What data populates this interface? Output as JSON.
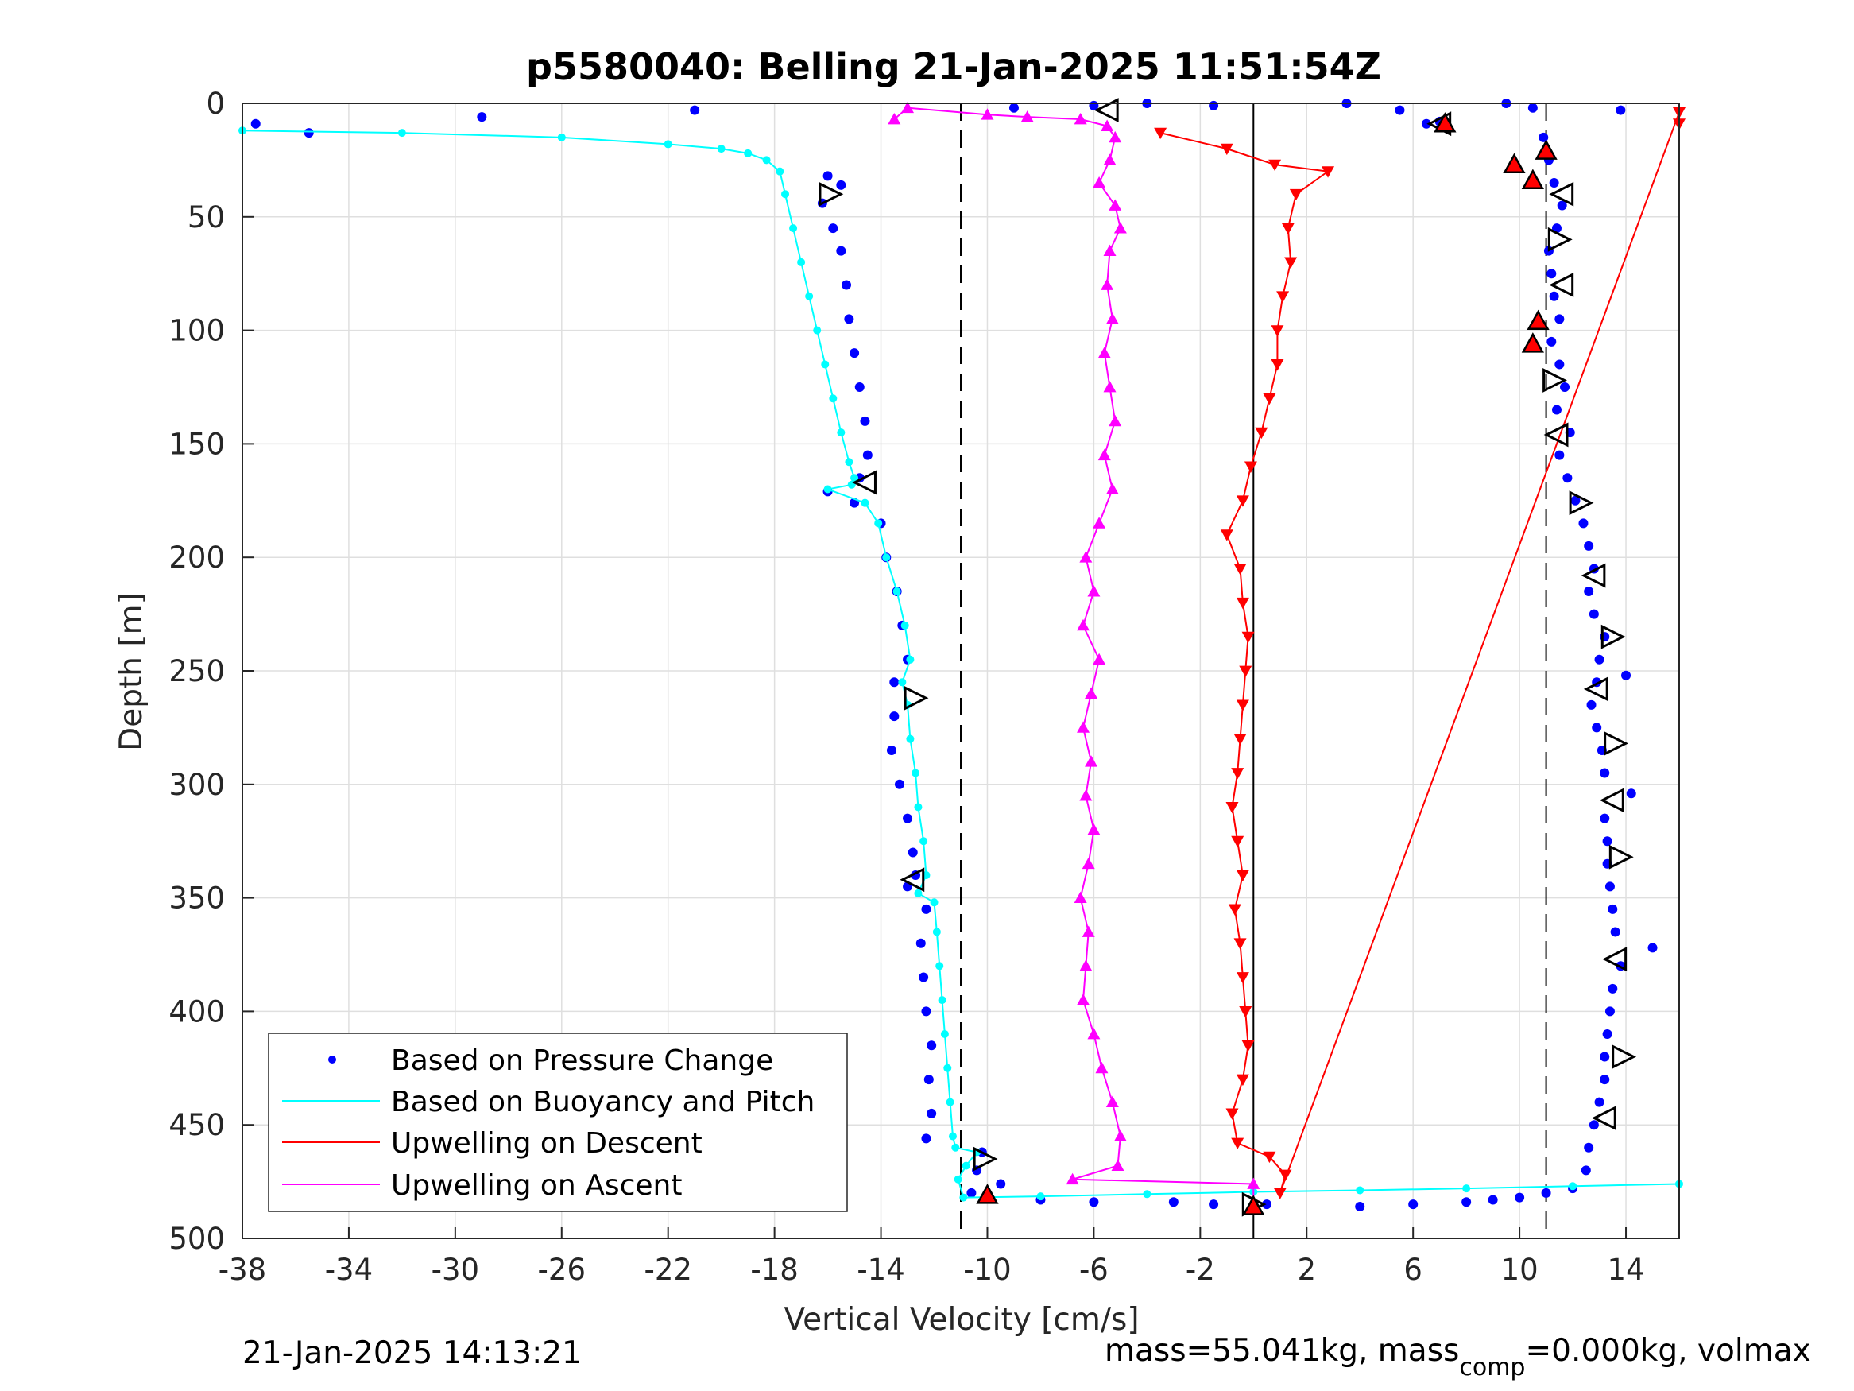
{
  "chart_data": {
    "type": "scatter",
    "title": "p5580040: Belling 21-Jan-2025 11:51:54Z",
    "xlabel": "Vertical Velocity [cm/s]",
    "ylabel": "Depth [m]",
    "xlim": [
      -38,
      16
    ],
    "ylim": [
      0,
      500
    ],
    "y_reversed": true,
    "x_ticks": [
      "-38",
      "-34",
      "-30",
      "-26",
      "-22",
      "-18",
      "-14",
      "-10",
      "-6",
      "-2",
      "2",
      "6",
      "10",
      "14"
    ],
    "y_ticks": [
      "0",
      "50",
      "100",
      "150",
      "200",
      "250",
      "300",
      "350",
      "400",
      "450",
      "500"
    ],
    "grid": true,
    "legend_position": "bottom-left",
    "reference_lines": {
      "solid_x": 0,
      "dashed_x": [
        -11,
        11
      ]
    },
    "series": [
      {
        "name": "Based on Pressure Change",
        "style": "dots",
        "color": "#0000ff",
        "points": [
          [
            -37.5,
            9
          ],
          [
            -35.5,
            13
          ],
          [
            -29,
            6
          ],
          [
            -21,
            3
          ],
          [
            -16,
            32
          ],
          [
            -15.5,
            36
          ],
          [
            -16.2,
            44
          ],
          [
            -15.8,
            55
          ],
          [
            -15.5,
            65
          ],
          [
            -15.3,
            80
          ],
          [
            -15.2,
            95
          ],
          [
            -15,
            110
          ],
          [
            -14.8,
            125
          ],
          [
            -14.6,
            140
          ],
          [
            -14.5,
            155
          ],
          [
            -14.8,
            165
          ],
          [
            -16,
            171
          ],
          [
            -15,
            176
          ],
          [
            -14,
            185
          ],
          [
            -13.8,
            200
          ],
          [
            -13.4,
            215
          ],
          [
            -13.2,
            230
          ],
          [
            -13,
            245
          ],
          [
            -13.5,
            255
          ],
          [
            -13.5,
            270
          ],
          [
            -13.6,
            285
          ],
          [
            -13.3,
            300
          ],
          [
            -13,
            315
          ],
          [
            -12.8,
            330
          ],
          [
            -12.7,
            340
          ],
          [
            -13,
            345
          ],
          [
            -12.3,
            355
          ],
          [
            -12.5,
            370
          ],
          [
            -12.4,
            385
          ],
          [
            -12.3,
            400
          ],
          [
            -12.1,
            415
          ],
          [
            -12.2,
            430
          ],
          [
            -12.1,
            445
          ],
          [
            -12.3,
            456
          ],
          [
            -10.2,
            462
          ],
          [
            -10.4,
            470
          ],
          [
            -10.6,
            480
          ],
          [
            -9.5,
            476
          ],
          [
            -8,
            483
          ],
          [
            -6,
            484
          ],
          [
            -3,
            484
          ],
          [
            -1.5,
            485
          ],
          [
            0.5,
            485
          ],
          [
            4,
            486
          ],
          [
            6,
            485
          ],
          [
            8,
            484
          ],
          [
            9,
            483
          ],
          [
            10,
            482
          ],
          [
            11,
            480
          ],
          [
            12,
            478
          ],
          [
            12.5,
            470
          ],
          [
            12.6,
            460
          ],
          [
            12.8,
            450
          ],
          [
            13,
            440
          ],
          [
            13.2,
            430
          ],
          [
            13.2,
            420
          ],
          [
            13.3,
            410
          ],
          [
            13.4,
            400
          ],
          [
            13.5,
            390
          ],
          [
            13.8,
            380
          ],
          [
            15,
            372
          ],
          [
            13.6,
            365
          ],
          [
            13.5,
            355
          ],
          [
            13.4,
            345
          ],
          [
            13.3,
            335
          ],
          [
            13.3,
            325
          ],
          [
            13.2,
            315
          ],
          [
            14.2,
            304
          ],
          [
            13.2,
            295
          ],
          [
            13.1,
            285
          ],
          [
            12.9,
            275
          ],
          [
            12.7,
            265
          ],
          [
            12.9,
            255
          ],
          [
            14,
            252
          ],
          [
            13,
            245
          ],
          [
            13.2,
            235
          ],
          [
            12.8,
            225
          ],
          [
            12.6,
            215
          ],
          [
            12.8,
            205
          ],
          [
            12.6,
            195
          ],
          [
            12.4,
            185
          ],
          [
            12.1,
            175
          ],
          [
            11.8,
            165
          ],
          [
            11.5,
            155
          ],
          [
            11.9,
            145
          ],
          [
            11.4,
            135
          ],
          [
            11.7,
            125
          ],
          [
            11.5,
            115
          ],
          [
            11.2,
            105
          ],
          [
            11.5,
            95
          ],
          [
            11.3,
            85
          ],
          [
            11.2,
            75
          ],
          [
            11.1,
            65
          ],
          [
            11.4,
            55
          ],
          [
            11.6,
            45
          ],
          [
            11.3,
            35
          ],
          [
            11.1,
            25
          ],
          [
            10.9,
            15
          ],
          [
            7,
            8
          ],
          [
            6.5,
            9
          ],
          [
            9.5,
            0
          ],
          [
            10.5,
            2
          ],
          [
            13.8,
            3
          ],
          [
            5.5,
            3
          ],
          [
            -1.5,
            1
          ],
          [
            3.5,
            0
          ],
          [
            -4,
            0
          ],
          [
            -6,
            1
          ],
          [
            -9,
            2
          ]
        ]
      },
      {
        "name": "Based on Buoyancy and Pitch",
        "style": "line",
        "color": "#00ffff",
        "points": [
          [
            -38,
            12
          ],
          [
            -32,
            13
          ],
          [
            -26,
            15
          ],
          [
            -22,
            18
          ],
          [
            -20,
            20
          ],
          [
            -19,
            22
          ],
          [
            -18.3,
            25
          ],
          [
            -17.8,
            30
          ],
          [
            -17.6,
            40
          ],
          [
            -17.3,
            55
          ],
          [
            -17,
            70
          ],
          [
            -16.7,
            85
          ],
          [
            -16.4,
            100
          ],
          [
            -16.1,
            115
          ],
          [
            -15.8,
            130
          ],
          [
            -15.5,
            145
          ],
          [
            -15.2,
            158
          ],
          [
            -15,
            165
          ],
          [
            -15.1,
            168
          ],
          [
            -16,
            170
          ],
          [
            -14.6,
            176
          ],
          [
            -14.1,
            185
          ],
          [
            -13.8,
            200
          ],
          [
            -13.4,
            215
          ],
          [
            -13.1,
            230
          ],
          [
            -12.9,
            245
          ],
          [
            -13.2,
            255
          ],
          [
            -13,
            265
          ],
          [
            -12.9,
            280
          ],
          [
            -12.7,
            295
          ],
          [
            -12.6,
            310
          ],
          [
            -12.4,
            325
          ],
          [
            -12.3,
            340
          ],
          [
            -12.6,
            348
          ],
          [
            -12,
            352
          ],
          [
            -11.9,
            365
          ],
          [
            -11.8,
            380
          ],
          [
            -11.7,
            395
          ],
          [
            -11.6,
            410
          ],
          [
            -11.5,
            425
          ],
          [
            -11.4,
            440
          ],
          [
            -11.3,
            455
          ],
          [
            -11.2,
            460
          ],
          [
            -10.4,
            462
          ],
          [
            -10.8,
            468
          ],
          [
            -11.1,
            474
          ],
          [
            -10.9,
            482
          ],
          [
            -8,
            481.5
          ],
          [
            -4,
            480.5
          ],
          [
            0,
            479.5
          ],
          [
            4,
            478.8
          ],
          [
            8,
            478
          ],
          [
            12,
            477
          ],
          [
            16,
            476
          ]
        ]
      },
      {
        "name": "Upwelling on Descent",
        "style": "down-triangles",
        "color": "#ff0000",
        "points": [
          [
            -3.5,
            13
          ],
          [
            -1,
            20
          ],
          [
            0.8,
            27
          ],
          [
            2.8,
            30
          ],
          [
            1.6,
            40
          ],
          [
            1.3,
            55
          ],
          [
            1.4,
            70
          ],
          [
            1.1,
            85
          ],
          [
            0.9,
            100
          ],
          [
            0.9,
            115
          ],
          [
            0.6,
            130
          ],
          [
            0.3,
            145
          ],
          [
            -0.1,
            160
          ],
          [
            -0.4,
            175
          ],
          [
            -1,
            190
          ],
          [
            -0.5,
            205
          ],
          [
            -0.4,
            220
          ],
          [
            -0.2,
            235
          ],
          [
            -0.3,
            250
          ],
          [
            -0.4,
            265
          ],
          [
            -0.5,
            280
          ],
          [
            -0.6,
            295
          ],
          [
            -0.8,
            310
          ],
          [
            -0.6,
            325
          ],
          [
            -0.4,
            340
          ],
          [
            -0.7,
            355
          ],
          [
            -0.5,
            370
          ],
          [
            -0.4,
            385
          ],
          [
            -0.3,
            400
          ],
          [
            -0.2,
            415
          ],
          [
            -0.4,
            430
          ],
          [
            -0.8,
            445
          ],
          [
            -0.6,
            458
          ],
          [
            0.6,
            464
          ],
          [
            1.2,
            472
          ],
          [
            1.0,
            480
          ],
          [
            16,
            4
          ],
          [
            16,
            9
          ]
        ]
      },
      {
        "name": "Upwelling on Ascent",
        "style": "up-triangles",
        "color": "#ff00ff",
        "points": [
          [
            -13.5,
            7
          ],
          [
            -13,
            2
          ],
          [
            -10,
            5
          ],
          [
            -8.5,
            6
          ],
          [
            -6.5,
            7
          ],
          [
            -5.5,
            10
          ],
          [
            -5.2,
            15
          ],
          [
            -5.4,
            25
          ],
          [
            -5.8,
            35
          ],
          [
            -5.2,
            45
          ],
          [
            -5,
            55
          ],
          [
            -5.4,
            65
          ],
          [
            -5.5,
            80
          ],
          [
            -5.3,
            95
          ],
          [
            -5.6,
            110
          ],
          [
            -5.4,
            125
          ],
          [
            -5.2,
            140
          ],
          [
            -5.6,
            155
          ],
          [
            -5.3,
            170
          ],
          [
            -5.8,
            185
          ],
          [
            -6.3,
            200
          ],
          [
            -6,
            215
          ],
          [
            -6.4,
            230
          ],
          [
            -5.8,
            245
          ],
          [
            -6.1,
            260
          ],
          [
            -6.4,
            275
          ],
          [
            -6.1,
            290
          ],
          [
            -6.3,
            305
          ],
          [
            -6,
            320
          ],
          [
            -6.2,
            335
          ],
          [
            -6.5,
            350
          ],
          [
            -6.2,
            365
          ],
          [
            -6.3,
            380
          ],
          [
            -6.4,
            395
          ],
          [
            -6,
            410
          ],
          [
            -5.7,
            425
          ],
          [
            -5.3,
            440
          ],
          [
            -5.0,
            455
          ],
          [
            -5.1,
            468
          ],
          [
            -6.8,
            474
          ],
          [
            0,
            476
          ],
          [
            0,
            484
          ]
        ]
      },
      {
        "name": "",
        "style": "open-triangles",
        "color": "#000000",
        "points": [
          [
            -5.5,
            3
          ],
          [
            -15.9,
            40
          ],
          [
            -14.6,
            167
          ],
          [
            -12.7,
            262
          ],
          [
            -12.8,
            342
          ],
          [
            -10.1,
            465
          ],
          [
            11.6,
            40
          ],
          [
            11.5,
            60
          ],
          [
            11.6,
            80
          ],
          [
            11.3,
            122
          ],
          [
            11.4,
            146
          ],
          [
            12.3,
            176
          ],
          [
            12.8,
            208
          ],
          [
            13.5,
            235
          ],
          [
            12.9,
            258
          ],
          [
            13.6,
            282
          ],
          [
            13.5,
            307
          ],
          [
            13.8,
            332
          ],
          [
            13.6,
            377
          ],
          [
            13.9,
            420
          ],
          [
            13.2,
            447
          ],
          [
            0,
            485
          ],
          [
            7,
            9
          ]
        ]
      },
      {
        "name": "",
        "style": "red-marker-triangles",
        "color": "#ff0000",
        "points": [
          [
            7.2,
            9
          ],
          [
            11,
            21
          ],
          [
            9.8,
            27
          ],
          [
            10.5,
            34
          ],
          [
            10.7,
            96
          ],
          [
            10.5,
            106
          ],
          [
            -10,
            481
          ],
          [
            0,
            486
          ]
        ]
      }
    ],
    "legend": [
      {
        "label": "Based on Pressure Change",
        "style": "dot",
        "color": "#0000ff"
      },
      {
        "label": "Based on Buoyancy and Pitch",
        "style": "line",
        "color": "#00ffff"
      },
      {
        "label": "Upwelling on Descent",
        "style": "line",
        "color": "#ff0000"
      },
      {
        "label": "Upwelling on Ascent",
        "style": "line",
        "color": "#ff00ff"
      }
    ]
  },
  "footer": {
    "left": "21-Jan-2025 14:13:21",
    "right_main": "mass=55.041kg, mass",
    "right_sub": "comp",
    "right_rest": "=0.000kg, volmax"
  }
}
